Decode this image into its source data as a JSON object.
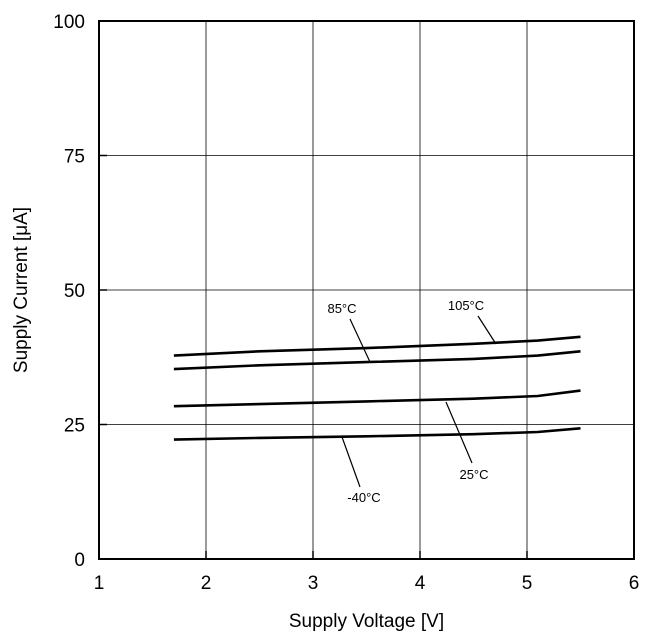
{
  "chart_data": {
    "type": "line",
    "title": "",
    "xlabel": "Supply Voltage [V]",
    "ylabel": "Supply Current [μA]",
    "xlim": [
      1,
      6
    ],
    "ylim": [
      0,
      100
    ],
    "xticks": [
      "1",
      "2",
      "3",
      "4",
      "5",
      "6"
    ],
    "yticks": [
      "0",
      "25",
      "50",
      "75",
      "100"
    ],
    "grid": true,
    "legend": "inline labels",
    "line_color": "#000000",
    "series": [
      {
        "name": "105°C",
        "x": [
          1.7,
          2.5,
          3.5,
          4.5,
          5.1,
          5.5
        ],
        "y": [
          37.8,
          38.6,
          39.2,
          40.0,
          40.6,
          41.3
        ]
      },
      {
        "name": "85°C",
        "x": [
          1.7,
          2.5,
          3.5,
          4.5,
          5.1,
          5.5
        ],
        "y": [
          35.3,
          36.0,
          36.6,
          37.2,
          37.8,
          38.6
        ]
      },
      {
        "name": "25°C",
        "x": [
          1.7,
          2.5,
          3.5,
          4.5,
          5.1,
          5.5
        ],
        "y": [
          28.4,
          28.8,
          29.3,
          29.8,
          30.3,
          31.3
        ]
      },
      {
        "name": "-40°C",
        "x": [
          1.7,
          2.5,
          3.5,
          4.5,
          5.1,
          5.5
        ],
        "y": [
          22.2,
          22.5,
          22.8,
          23.2,
          23.6,
          24.3
        ]
      }
    ]
  }
}
